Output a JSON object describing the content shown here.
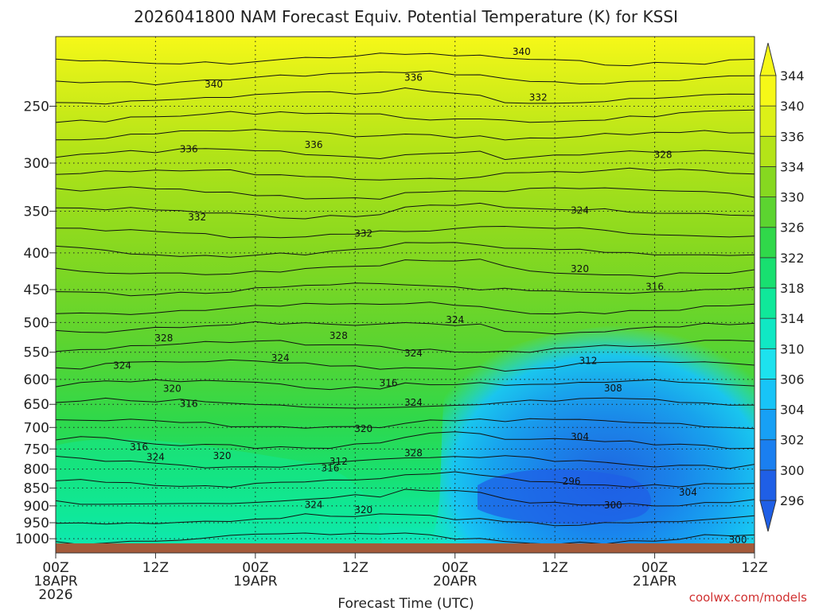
{
  "chart_data": {
    "type": "heatmap",
    "title": "2026041800 NAM Forecast Equiv. Potential Temperature (K) for KSSI",
    "xlabel": "Forecast Time (UTC)",
    "ylabel": "",
    "x_ticks": [
      {
        "hour": 0,
        "lines": [
          "00Z",
          "18APR",
          "2026"
        ]
      },
      {
        "hour": 12,
        "lines": [
          "12Z"
        ]
      },
      {
        "hour": 24,
        "lines": [
          "00Z",
          "19APR"
        ]
      },
      {
        "hour": 36,
        "lines": [
          "12Z"
        ]
      },
      {
        "hour": 48,
        "lines": [
          "00Z",
          "20APR"
        ]
      },
      {
        "hour": 60,
        "lines": [
          "12Z"
        ]
      },
      {
        "hour": 72,
        "lines": [
          "00Z",
          "21APR"
        ]
      },
      {
        "hour": 84,
        "lines": [
          "12Z"
        ]
      }
    ],
    "xlim": [
      0,
      84
    ],
    "y_ticks": [
      250,
      300,
      350,
      400,
      450,
      500,
      550,
      600,
      650,
      700,
      750,
      800,
      850,
      900,
      950,
      1000
    ],
    "ylim": [
      200,
      1015
    ],
    "y_scale": "log",
    "y_reversed": true,
    "grid": true,
    "colorbar": {
      "ticks": [
        296,
        300,
        302,
        304,
        306,
        310,
        314,
        318,
        322,
        326,
        330,
        334,
        336,
        340,
        344
      ],
      "colors": [
        "#1f5fe6",
        "#1a7ff0",
        "#17a0f5",
        "#18c4f7",
        "#1de2ee",
        "#10e8c4",
        "#10e89a",
        "#18e070",
        "#30d84a",
        "#5cd430",
        "#86d820",
        "#b4e418",
        "#dcf018",
        "#f6f818"
      ]
    },
    "contour_labels": [
      {
        "text": "340",
        "hour": 56,
        "p": 210
      },
      {
        "text": "340",
        "hour": 19,
        "p": 233
      },
      {
        "text": "336",
        "hour": 43,
        "p": 228
      },
      {
        "text": "332",
        "hour": 58,
        "p": 243
      },
      {
        "text": "336",
        "hour": 16,
        "p": 287
      },
      {
        "text": "336",
        "hour": 31,
        "p": 283
      },
      {
        "text": "328",
        "hour": 73,
        "p": 292
      },
      {
        "text": "332",
        "hour": 17,
        "p": 357
      },
      {
        "text": "332",
        "hour": 37,
        "p": 376
      },
      {
        "text": "324",
        "hour": 63,
        "p": 349
      },
      {
        "text": "320",
        "hour": 63,
        "p": 421
      },
      {
        "text": "316",
        "hour": 72,
        "p": 446
      },
      {
        "text": "324",
        "hour": 48,
        "p": 496
      },
      {
        "text": "328",
        "hour": 13,
        "p": 526
      },
      {
        "text": "328",
        "hour": 34,
        "p": 522
      },
      {
        "text": "324",
        "hour": 27,
        "p": 560
      },
      {
        "text": "324",
        "hour": 43,
        "p": 552
      },
      {
        "text": "312",
        "hour": 64,
        "p": 565
      },
      {
        "text": "324",
        "hour": 8,
        "p": 574
      },
      {
        "text": "316",
        "hour": 40,
        "p": 607
      },
      {
        "text": "320",
        "hour": 14,
        "p": 618
      },
      {
        "text": "308",
        "hour": 67,
        "p": 617
      },
      {
        "text": "324",
        "hour": 43,
        "p": 646
      },
      {
        "text": "316",
        "hour": 16,
        "p": 649
      },
      {
        "text": "320",
        "hour": 37,
        "p": 703
      },
      {
        "text": "304",
        "hour": 63,
        "p": 721
      },
      {
        "text": "316",
        "hour": 10,
        "p": 746
      },
      {
        "text": "328",
        "hour": 43,
        "p": 760
      },
      {
        "text": "324",
        "hour": 12,
        "p": 770
      },
      {
        "text": "320",
        "hour": 20,
        "p": 767
      },
      {
        "text": "312",
        "hour": 34,
        "p": 781
      },
      {
        "text": "316",
        "hour": 33,
        "p": 798
      },
      {
        "text": "296",
        "hour": 62,
        "p": 832
      },
      {
        "text": "304",
        "hour": 76,
        "p": 862
      },
      {
        "text": "324",
        "hour": 31,
        "p": 897
      },
      {
        "text": "300",
        "hour": 67,
        "p": 898
      },
      {
        "text": "320",
        "hour": 37,
        "p": 912
      },
      {
        "text": "300",
        "hour": 82,
        "p": 1003
      }
    ],
    "credit": "coolwx.com/models"
  }
}
